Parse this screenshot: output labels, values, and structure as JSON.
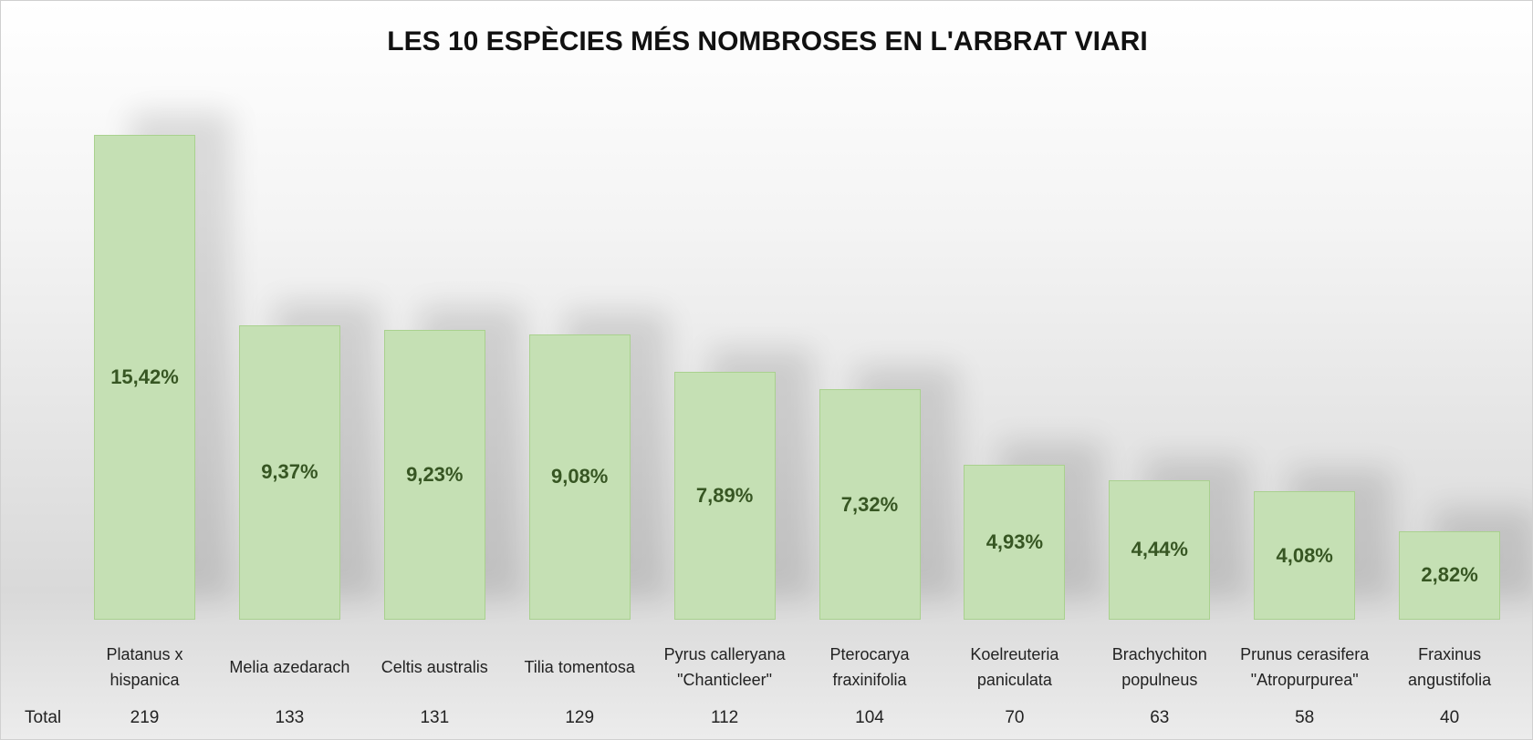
{
  "chart_data": {
    "type": "bar",
    "title": "LES 10 ESPÈCIES MÉS NOMBROSES EN L'ARBRAT VIARI",
    "categories": [
      "Platanus x hispanica",
      "Melia azedarach",
      "Celtis australis",
      "Tilia tomentosa",
      "Pyrus calleryana \"Chanticleer\"",
      "Pterocarya fraxinifolia",
      "Koelreuteria paniculata",
      "Brachychiton populneus",
      "Prunus cerasifera \"Atropurpurea\"",
      "Fraxinus angustifolia"
    ],
    "row_label": "Total",
    "values": [
      219,
      133,
      131,
      129,
      112,
      104,
      70,
      63,
      58,
      40
    ],
    "data_labels": [
      "15,42%",
      "9,37%",
      "9,23%",
      "9,08%",
      "7,89%",
      "7,32%",
      "4,93%",
      "4,44%",
      "4,08%",
      "2,82%"
    ],
    "color": "#c5e0b4",
    "border_color": "#a9d18e",
    "label_color": "#375623"
  }
}
